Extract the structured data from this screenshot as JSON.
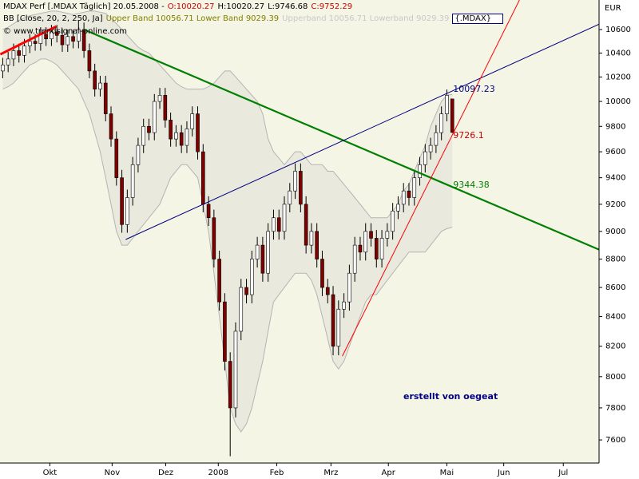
{
  "chart_data": {
    "type": "candlestick",
    "header": {
      "title": "MDAX Perf [.MDAX  Täglich] 20.05.2008 -",
      "ohlc": [
        {
          "text": "O:10020.27",
          "color": "#cc0000"
        },
        {
          "text": "H:10020.27",
          "color": "#000000"
        },
        {
          "text": "L:9746.68",
          "color": "#000000"
        },
        {
          "text": "C:9752.29",
          "color": "#cc0000"
        }
      ],
      "indicator": "BB [Close, 20, 2, 250, Ja]",
      "bands_label": "Upper Band 10056.71 Lower Band 9029.39",
      "bands_label_faded": "Upperband 10056.71 Lowerband 9029.39",
      "symbol": "{.MDAX}",
      "watermark": "© www.trendsignal-online.com"
    },
    "currency": "EUR",
    "footnote": "erstellt von oegeat",
    "log_scale": true,
    "background": "#f5f5e6",
    "up_color": "#ffffff",
    "down_color": "#800000",
    "wick_color": "#000000",
    "band_color": "#b4b4b4",
    "band_fill": "#e9e9de",
    "ylim": [
      7459,
      10857
    ],
    "yticks": [
      7600,
      7800,
      8000,
      8200,
      8400,
      8600,
      8800,
      9000,
      9200,
      9400,
      9600,
      9800,
      10000,
      10200,
      10400,
      10600
    ],
    "xlim": [
      -0.5,
      110.1
    ],
    "xticks": [
      {
        "value": 8.7,
        "label": "Okt"
      },
      {
        "value": 20.2,
        "label": "Nov"
      },
      {
        "value": 30.1,
        "label": "Dez"
      },
      {
        "value": 39.8,
        "label": "2008"
      },
      {
        "value": 50.6,
        "label": "Feb"
      },
      {
        "value": 60.6,
        "label": "Mrz"
      },
      {
        "value": 71.2,
        "label": "Apr"
      },
      {
        "value": 82.0,
        "label": "Mai"
      },
      {
        "value": 92.5,
        "label": "Jun"
      },
      {
        "value": 103.5,
        "label": "Jul"
      }
    ],
    "open": [
      10250,
      10300,
      10350,
      10420,
      10380,
      10460,
      10500,
      10480,
      10560,
      10520,
      10580,
      10550,
      10470,
      10540,
      10500,
      10600,
      10420,
      10250,
      10100,
      10150,
      9900,
      9700,
      9400,
      9050,
      9250,
      9500,
      9650,
      9800,
      9750,
      10000,
      10050,
      9850,
      9700,
      9750,
      9650,
      9780,
      9900,
      9600,
      9200,
      9100,
      8800,
      8500,
      8100,
      7800,
      8300,
      8600,
      8550,
      8800,
      8900,
      8700,
      9000,
      9100,
      9000,
      9200,
      9300,
      9450,
      9200,
      8900,
      9000,
      8800,
      8600,
      8550,
      8200,
      8450,
      8500,
      8700,
      8900,
      8850,
      9000,
      8950,
      8800,
      8950,
      9000,
      9150,
      9200,
      9300,
      9250,
      9400,
      9500,
      9600,
      9650,
      9750,
      9900,
      10020.27
    ],
    "high": [
      10360,
      10410,
      10480,
      10480,
      10520,
      10560,
      10560,
      10620,
      10620,
      10640,
      10640,
      10610,
      10600,
      10600,
      10680,
      10660,
      10480,
      10310,
      10210,
      10210,
      9960,
      9760,
      9460,
      9310,
      9560,
      9710,
      9860,
      9860,
      10060,
      10110,
      10110,
      9910,
      9810,
      9810,
      9840,
      9960,
      9960,
      9660,
      9260,
      9160,
      8860,
      8560,
      8160,
      8360,
      8660,
      8660,
      8860,
      8960,
      8960,
      9060,
      9160,
      9160,
      9260,
      9360,
      9510,
      9510,
      9260,
      9060,
      9060,
      8860,
      8660,
      8610,
      8510,
      8560,
      8760,
      8960,
      8960,
      9060,
      9060,
      9010,
      9010,
      9060,
      9210,
      9260,
      9360,
      9360,
      9460,
      9560,
      9660,
      9710,
      9810,
      9960,
      10097.23,
      10020.27
    ],
    "low": [
      10190,
      10240,
      10290,
      10320,
      10320,
      10400,
      10420,
      10420,
      10460,
      10460,
      10490,
      10410,
      10410,
      10440,
      10440,
      10360,
      10190,
      10040,
      10040,
      9840,
      9640,
      9340,
      8990,
      8990,
      9190,
      9440,
      9590,
      9690,
      9690,
      9940,
      9790,
      9640,
      9640,
      9590,
      9590,
      9720,
      9540,
      9140,
      9040,
      8740,
      8440,
      8040,
      7500,
      7740,
      8240,
      8490,
      8490,
      8740,
      8640,
      8640,
      8940,
      8940,
      8940,
      9140,
      9240,
      9140,
      8840,
      8840,
      8740,
      8540,
      8490,
      8140,
      8140,
      8390,
      8440,
      8640,
      8790,
      8790,
      8890,
      8740,
      8740,
      8890,
      8940,
      9090,
      9140,
      9190,
      9190,
      9340,
      9440,
      9540,
      9590,
      9690,
      9840,
      9746.68
    ],
    "close": [
      10300,
      10350,
      10420,
      10380,
      10460,
      10500,
      10480,
      10560,
      10520,
      10580,
      10550,
      10470,
      10540,
      10500,
      10600,
      10420,
      10250,
      10100,
      10150,
      9900,
      9700,
      9400,
      9050,
      9250,
      9500,
      9650,
      9800,
      9750,
      10000,
      10050,
      9850,
      9700,
      9750,
      9650,
      9780,
      9900,
      9600,
      9200,
      9100,
      8800,
      8500,
      8100,
      7800,
      8300,
      8600,
      8550,
      8800,
      8900,
      8700,
      9000,
      9100,
      9000,
      9200,
      9300,
      9450,
      9200,
      8900,
      9000,
      8800,
      8600,
      8550,
      8200,
      8450,
      8500,
      8700,
      8900,
      8850,
      9000,
      8950,
      8800,
      8950,
      9000,
      9150,
      9200,
      9300,
      9250,
      9400,
      9500,
      9600,
      9650,
      9750,
      9900,
      10050,
      9752.29
    ],
    "bands": {
      "upper": [
        10600,
        10620,
        10650,
        10680,
        10700,
        10720,
        10730,
        10740,
        10750,
        10760,
        10760,
        10750,
        10740,
        10730,
        10740,
        10750,
        10760,
        10760,
        10750,
        10740,
        10700,
        10650,
        10600,
        10550,
        10500,
        10450,
        10420,
        10400,
        10350,
        10300,
        10250,
        10200,
        10150,
        10120,
        10100,
        10100,
        10100,
        10100,
        10120,
        10150,
        10200,
        10250,
        10250,
        10200,
        10150,
        10100,
        10050,
        10000,
        9900,
        9700,
        9600,
        9550,
        9500,
        9550,
        9600,
        9600,
        9550,
        9500,
        9500,
        9500,
        9450,
        9450,
        9400,
        9350,
        9300,
        9250,
        9200,
        9150,
        9100,
        9100,
        9100,
        9100,
        9150,
        9200,
        9300,
        9350,
        9450,
        9550,
        9650,
        9800,
        9900,
        10000,
        10050,
        10056.71
      ],
      "lower": [
        10100,
        10120,
        10150,
        10200,
        10250,
        10300,
        10320,
        10350,
        10350,
        10330,
        10300,
        10250,
        10200,
        10150,
        10100,
        10000,
        9900,
        9750,
        9600,
        9400,
        9200,
        9000,
        8900,
        8900,
        8950,
        9000,
        9050,
        9100,
        9150,
        9200,
        9300,
        9400,
        9450,
        9500,
        9500,
        9450,
        9400,
        9200,
        9000,
        8700,
        8400,
        8100,
        7800,
        7700,
        7650,
        7700,
        7800,
        7950,
        8100,
        8300,
        8500,
        8550,
        8600,
        8650,
        8700,
        8700,
        8700,
        8650,
        8550,
        8400,
        8250,
        8100,
        8050,
        8100,
        8200,
        8300,
        8400,
        8500,
        8550,
        8550,
        8600,
        8650,
        8700,
        8750,
        8800,
        8850,
        8850,
        8850,
        8850,
        8900,
        8950,
        9000,
        9020,
        9029.39
      ]
    },
    "lines": [
      {
        "color": "#ff0000",
        "width": 3,
        "x": [
          -0.44,
          9.9
        ],
        "y": [
          10389,
          10627
        ]
      },
      {
        "color": "#008000",
        "width": 2.2,
        "x": [
          15.0,
          110.2
        ],
        "y": [
          10600,
          8866
        ]
      },
      {
        "color": "#000080",
        "width": 1,
        "x": [
          22.7,
          110.2
        ],
        "y": [
          8941,
          10648
        ]
      },
      {
        "color": "#ff0000",
        "width": 1,
        "x": [
          62.7,
          95.4
        ],
        "y": [
          8134,
          10857
        ]
      }
    ],
    "annotations": [
      {
        "value": 10097.23,
        "color": "#000080"
      },
      {
        "value": 9726.1,
        "color": "#cc0000"
      },
      {
        "value": 9344.38,
        "color": "#008000"
      }
    ]
  }
}
